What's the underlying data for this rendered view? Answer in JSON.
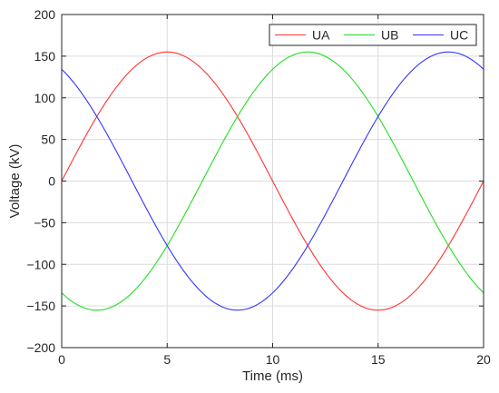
{
  "chart_data": {
    "type": "line",
    "title": "",
    "xlabel": "Time (ms)",
    "ylabel": "Voltage (kV)",
    "xlim": [
      0,
      20
    ],
    "ylim": [
      -200,
      200
    ],
    "xticks": [
      0,
      5,
      10,
      15,
      20
    ],
    "yticks": [
      -200,
      -150,
      -100,
      -50,
      0,
      50,
      100,
      150,
      200
    ],
    "grid": true,
    "legend_position": "top-right",
    "legend_orientation": "horizontal",
    "amplitude_kv": 155,
    "frequency_hz": 50,
    "series": [
      {
        "name": "UA",
        "color": "#ff3333",
        "x": [
          0,
          1,
          2,
          3,
          4,
          5,
          6,
          7,
          8,
          9,
          10,
          11,
          12,
          13,
          14,
          15,
          16,
          17,
          18,
          19,
          20
        ],
        "values": [
          0,
          47.9,
          91.1,
          125.4,
          147.4,
          155,
          147.4,
          125.4,
          91.1,
          47.9,
          0,
          -47.9,
          -91.1,
          -125.4,
          -147.4,
          -155,
          -147.4,
          -125.4,
          -91.1,
          -47.9,
          0
        ]
      },
      {
        "name": "UB",
        "color": "#22dd22",
        "x": [
          0,
          1,
          2,
          3,
          4,
          5,
          6,
          7,
          8,
          9,
          10,
          11,
          12,
          13,
          14,
          15,
          16,
          17,
          18,
          19,
          20
        ],
        "values": [
          -134.2,
          -150.8,
          -154.2,
          -140.8,
          -112.2,
          -77.5,
          -29.0,
          19.5,
          64.1,
          104.2,
          134.2,
          150.8,
          154.2,
          140.8,
          112.2,
          77.5,
          29.0,
          -19.5,
          -64.1,
          -104.2,
          -134.2
        ]
      },
      {
        "name": "UC",
        "color": "#3333ff",
        "x": [
          0,
          1,
          2,
          3,
          4,
          5,
          6,
          7,
          8,
          9,
          10,
          11,
          12,
          13,
          14,
          15,
          16,
          17,
          18,
          19,
          20
        ],
        "values": [
          134.2,
          102.9,
          63.1,
          15.4,
          -35.2,
          -77.5,
          -118.4,
          -144.9,
          -154.2,
          -152.1,
          -134.2,
          -102.9,
          -63.1,
          -15.4,
          35.2,
          77.5,
          118.4,
          144.9,
          154.2,
          152.1,
          134.2
        ]
      }
    ]
  }
}
